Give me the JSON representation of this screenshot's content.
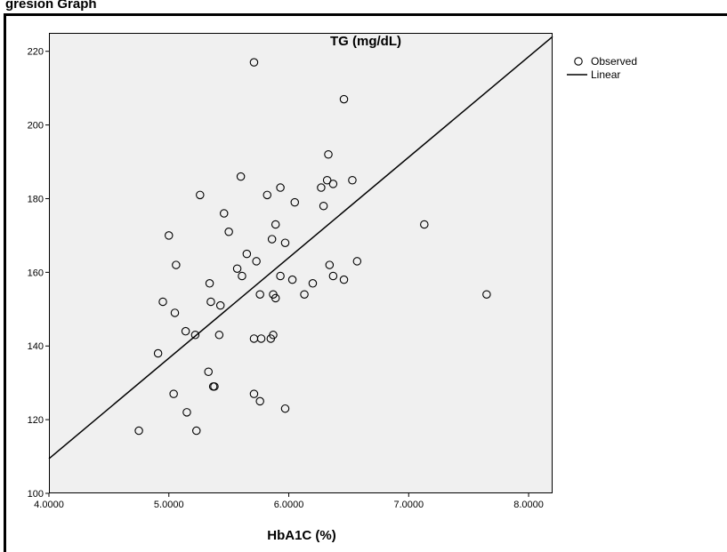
{
  "caption": "gresion Graph",
  "chart_data": {
    "type": "scatter",
    "title": "TG (mg/dL)",
    "xlabel": "HbA1C (%)",
    "ylabel": "",
    "xlim": [
      4.0,
      8.2
    ],
    "ylim": [
      100,
      225
    ],
    "xticks": [
      4.0,
      5.0,
      6.0,
      7.0,
      8.0
    ],
    "xtick_labels": [
      "4.0000",
      "5.0000",
      "6.0000",
      "7.0000",
      "8.0000"
    ],
    "yticks": [
      100,
      120,
      140,
      160,
      180,
      200,
      220
    ],
    "ytick_labels": [
      "100",
      "120",
      "140",
      "160",
      "180",
      "200",
      "220"
    ],
    "legend_position": "top-right, outside plot",
    "grid": false,
    "background_color": "#f0f0f0",
    "series": [
      {
        "name": "Observed",
        "type": "scatter",
        "marker": "open-circle",
        "points": [
          [
            4.75,
            117
          ],
          [
            4.91,
            138
          ],
          [
            4.95,
            152
          ],
          [
            5.0,
            170
          ],
          [
            5.04,
            127
          ],
          [
            5.05,
            149
          ],
          [
            5.06,
            162
          ],
          [
            5.14,
            144
          ],
          [
            5.15,
            122
          ],
          [
            5.22,
            143
          ],
          [
            5.23,
            117
          ],
          [
            5.26,
            181
          ],
          [
            5.33,
            133
          ],
          [
            5.34,
            157
          ],
          [
            5.35,
            152
          ],
          [
            5.37,
            129
          ],
          [
            5.38,
            129
          ],
          [
            5.42,
            143
          ],
          [
            5.43,
            151
          ],
          [
            5.46,
            176
          ],
          [
            5.5,
            171
          ],
          [
            5.57,
            161
          ],
          [
            5.6,
            186
          ],
          [
            5.61,
            159
          ],
          [
            5.65,
            165
          ],
          [
            5.71,
            217
          ],
          [
            5.71,
            142
          ],
          [
            5.71,
            127
          ],
          [
            5.73,
            163
          ],
          [
            5.76,
            154
          ],
          [
            5.76,
            125
          ],
          [
            5.77,
            142
          ],
          [
            5.82,
            181
          ],
          [
            5.85,
            142
          ],
          [
            5.86,
            169
          ],
          [
            5.87,
            143
          ],
          [
            5.87,
            154
          ],
          [
            5.89,
            173
          ],
          [
            5.89,
            153
          ],
          [
            5.93,
            183
          ],
          [
            5.93,
            159
          ],
          [
            5.97,
            168
          ],
          [
            5.97,
            123
          ],
          [
            6.03,
            158
          ],
          [
            6.05,
            179
          ],
          [
            6.13,
            154
          ],
          [
            6.2,
            157
          ],
          [
            6.27,
            183
          ],
          [
            6.29,
            178
          ],
          [
            6.32,
            185
          ],
          [
            6.33,
            192
          ],
          [
            6.34,
            162
          ],
          [
            6.37,
            184
          ],
          [
            6.37,
            159
          ],
          [
            6.46,
            207
          ],
          [
            6.46,
            158
          ],
          [
            6.53,
            185
          ],
          [
            6.57,
            163
          ],
          [
            7.13,
            173
          ],
          [
            7.65,
            154
          ]
        ]
      },
      {
        "name": "Linear",
        "type": "line",
        "points": [
          [
            4.0,
            109.4
          ],
          [
            8.2,
            224
          ]
        ]
      }
    ]
  }
}
